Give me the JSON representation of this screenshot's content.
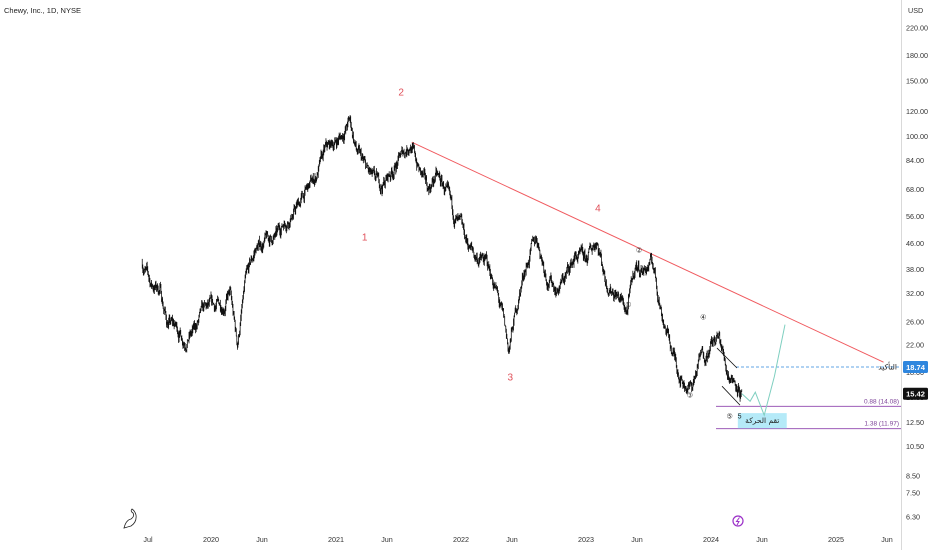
{
  "header": {
    "title": "Chewy, Inc., 1D, NYSE"
  },
  "currency": "USD",
  "colors": {
    "candles": "#111111",
    "trendline": "#f05a5f",
    "wave_labels_main": "#e0505a",
    "fib_lines": "#8e44ad",
    "confirm_line": "#2e86de",
    "projection": "#7fcfc0",
    "target_box": "#a8e6f7",
    "badge_confirm": "#2e86de",
    "badge_last": "#111111",
    "logo_icon": "#9b30c8"
  },
  "chart_data": {
    "type": "line",
    "y_scale": "log",
    "ylim": [
      5.8,
      240
    ],
    "y_ticks": [
      "220.00",
      "180.00",
      "150.00",
      "120.00",
      "100.00",
      "84.00",
      "68.00",
      "56.00",
      "46.00",
      "38.00",
      "32.00",
      "26.00",
      "22.00",
      "18.00",
      "15.00",
      "12.50",
      "10.50",
      "8.50",
      "7.50",
      "6.30"
    ],
    "x_ticks": [
      "Jul",
      "2020",
      "Jun",
      "2021",
      "Jun",
      "2022",
      "Jun",
      "2023",
      "Jun",
      "2024",
      "Jun",
      "2025",
      "Jun"
    ],
    "series": [
      {
        "values": [
          [
            "2019-06-14",
            40
          ],
          [
            "2019-07-10",
            34
          ],
          [
            "2019-08-05",
            33
          ],
          [
            "2019-08-25",
            26
          ],
          [
            "2019-09-20",
            25
          ],
          [
            "2019-10-15",
            23
          ],
          [
            "2019-11-10",
            24
          ],
          [
            "2019-12-10",
            28
          ],
          [
            "2020-01-15",
            29
          ],
          [
            "2020-02-10",
            30
          ],
          [
            "2020-02-25",
            32
          ],
          [
            "2020-03-18",
            22
          ],
          [
            "2020-04-10",
            34
          ],
          [
            "2020-05-10",
            44
          ],
          [
            "2020-06-10",
            47
          ],
          [
            "2020-07-10",
            48
          ],
          [
            "2020-08-01",
            54
          ],
          [
            "2020-09-01",
            58
          ],
          [
            "2020-10-01",
            66
          ],
          [
            "2020-11-01",
            74
          ],
          [
            "2020-12-01",
            90
          ],
          [
            "2021-01-15",
            100
          ],
          [
            "2021-02-10",
            112
          ],
          [
            "2021-03-01",
            90
          ],
          [
            "2021-03-25",
            80
          ],
          [
            "2021-04-20",
            72
          ],
          [
            "2021-05-15",
            70
          ],
          [
            "2021-06-20",
            80
          ],
          [
            "2021-08-05",
            96
          ],
          [
            "2021-09-01",
            78
          ],
          [
            "2021-09-25",
            68
          ],
          [
            "2021-10-20",
            75
          ],
          [
            "2021-11-15",
            68
          ],
          [
            "2021-12-05",
            58
          ],
          [
            "2022-01-10",
            48
          ],
          [
            "2022-02-10",
            42
          ],
          [
            "2022-03-15",
            40
          ],
          [
            "2022-04-10",
            34
          ],
          [
            "2022-05-05",
            26
          ],
          [
            "2022-05-20",
            21
          ],
          [
            "2022-06-10",
            28
          ],
          [
            "2022-07-05",
            38
          ],
          [
            "2022-08-10",
            48
          ],
          [
            "2022-09-10",
            36
          ],
          [
            "2022-10-10",
            33
          ],
          [
            "2022-11-01",
            36
          ],
          [
            "2022-12-01",
            42
          ],
          [
            "2023-01-01",
            40
          ],
          [
            "2023-02-01",
            48
          ],
          [
            "2023-03-01",
            35
          ],
          [
            "2023-04-01",
            32
          ],
          [
            "2023-05-01",
            28
          ],
          [
            "2023-05-25",
            39
          ],
          [
            "2023-06-20",
            38
          ],
          [
            "2023-07-15",
            40
          ],
          [
            "2023-08-10",
            28
          ],
          [
            "2023-09-10",
            21
          ],
          [
            "2023-10-10",
            17
          ],
          [
            "2023-11-05",
            16
          ],
          [
            "2023-12-01",
            20
          ],
          [
            "2024-01-01",
            22
          ],
          [
            "2024-01-25",
            23
          ],
          [
            "2024-02-20",
            18
          ],
          [
            "2024-03-15",
            17
          ],
          [
            "2024-04-01",
            15.42
          ]
        ]
      }
    ],
    "trendline": {
      "from": [
        "2021-08-10",
        96
      ],
      "to": [
        "2025-05-20",
        19.4
      ]
    },
    "wave_labels": [
      {
        "text": "2",
        "date": "2021-07-10",
        "price": 135,
        "style": "main"
      },
      {
        "text": "1",
        "date": "2021-03-25",
        "price": 47,
        "style": "main"
      },
      {
        "text": "3",
        "date": "2022-05-25",
        "price": 17,
        "style": "main"
      },
      {
        "text": "4",
        "date": "2023-02-05",
        "price": 58,
        "style": "main"
      },
      {
        "text": "②",
        "date": "2023-06-05",
        "price": 43,
        "style": "circle"
      },
      {
        "text": "①",
        "date": "2023-05-05",
        "price": 29,
        "style": "circle"
      },
      {
        "text": "④",
        "date": "2023-12-10",
        "price": 26.5,
        "style": "circle"
      },
      {
        "text": "③",
        "date": "2023-11-01",
        "price": 15,
        "style": "circle"
      },
      {
        "text": "⑤",
        "date": "2024-02-25",
        "price": 12.9,
        "style": "circle"
      },
      {
        "text": "5",
        "date": "2024-03-25",
        "price": 12.9,
        "style": "faint"
      }
    ],
    "projection": [
      [
        "2024-04-01",
        15.42
      ],
      [
        "2024-04-25",
        14.6
      ],
      [
        "2024-05-10",
        15.6
      ],
      [
        "2024-06-05",
        13.2
      ],
      [
        "2024-07-05",
        17.5
      ],
      [
        "2024-08-05",
        25.5
      ]
    ],
    "confirm_level": 18.74,
    "confirm_label": "التأكيد",
    "fib_levels": [
      {
        "price": 14.08,
        "label": "0.88 (14.08)"
      },
      {
        "price": 11.97,
        "label": "1.38 (11.97)"
      }
    ],
    "target_zone": {
      "label": "تقم الحركة",
      "from_date": "2024-03-20",
      "to_date": "2024-08-10",
      "price_top": 13.4,
      "price_bottom": 12.0
    },
    "price_badges": [
      {
        "value": "18.74",
        "style": "confirm"
      },
      {
        "value": "15.42",
        "style": "last"
      }
    ]
  }
}
